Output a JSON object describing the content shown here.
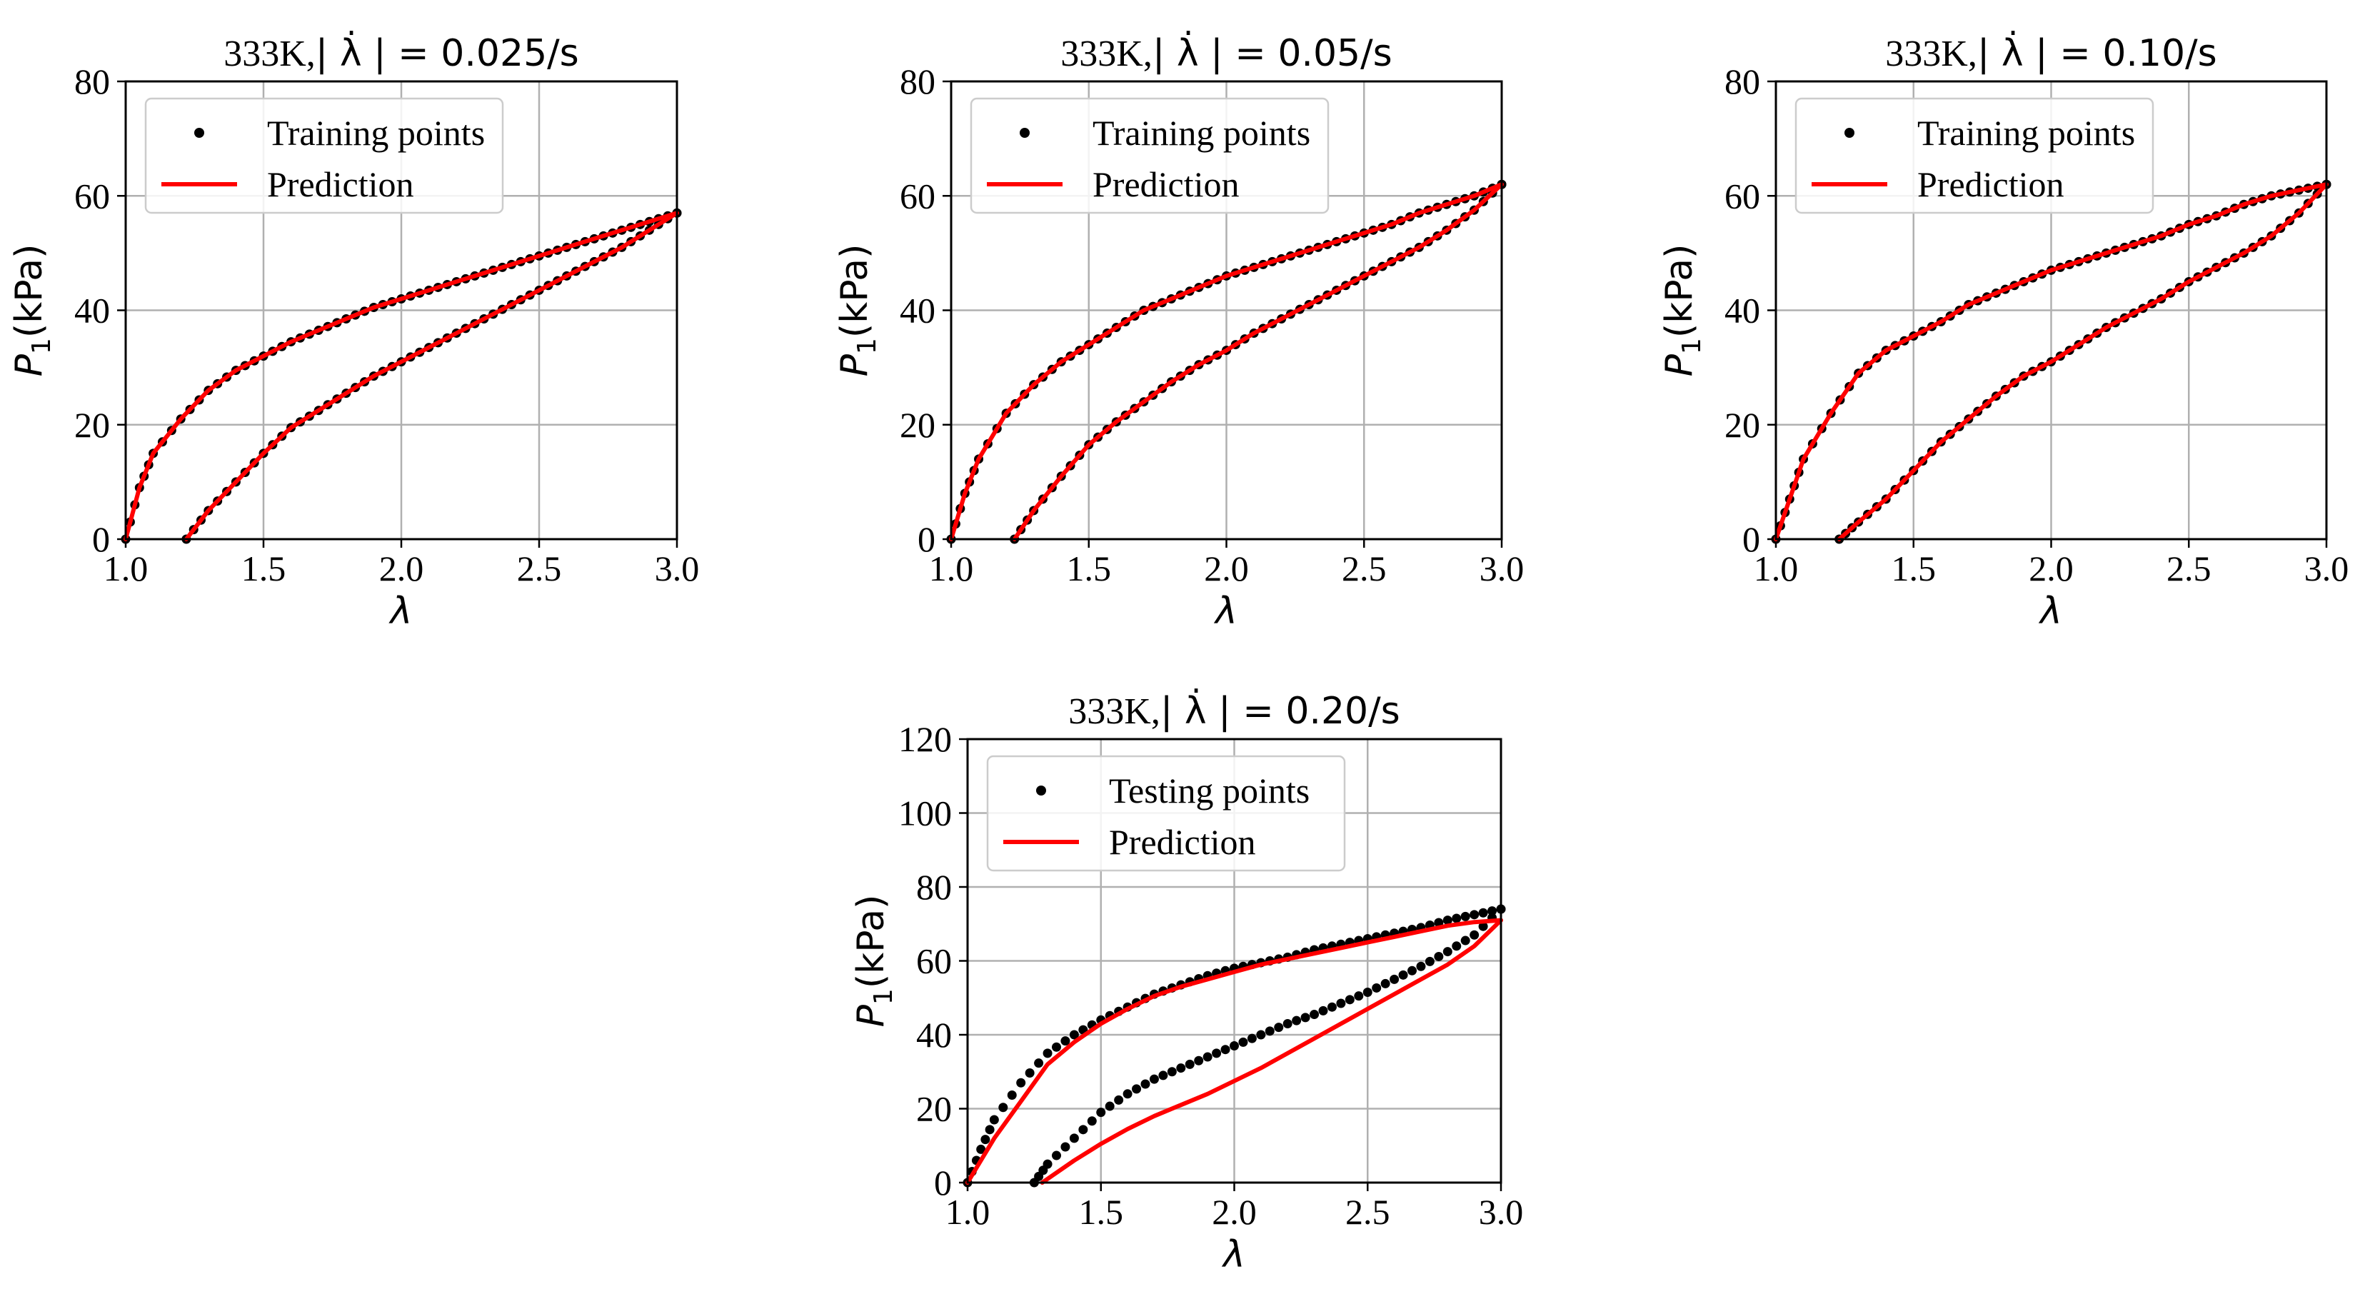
{
  "chart_data": [
    {
      "type": "scatter",
      "title_prefix": "333K,",
      "title_rate": "| λ̇ | = 0.025/s",
      "xlabel": "λ",
      "ylabel_base": "P",
      "ylabel_sub": "1",
      "ylabel_unit": "(kPa)",
      "xlim": [
        1.0,
        3.0
      ],
      "ylim": [
        0,
        80
      ],
      "xticks": [
        "1.0",
        "1.5",
        "2.0",
        "2.5",
        "3.0"
      ],
      "yticks": [
        "0",
        "20",
        "40",
        "60",
        "80"
      ],
      "grid": true,
      "legend_position": "top-left",
      "points_label": "Training points",
      "prediction_label": "Prediction",
      "loading": [
        [
          1.0,
          0
        ],
        [
          1.05,
          9
        ],
        [
          1.1,
          15
        ],
        [
          1.2,
          21
        ],
        [
          1.3,
          26
        ],
        [
          1.4,
          29.5
        ],
        [
          1.5,
          32
        ],
        [
          1.6,
          34.5
        ],
        [
          1.7,
          36.5
        ],
        [
          1.8,
          38.5
        ],
        [
          1.9,
          40.5
        ],
        [
          2.0,
          42
        ],
        [
          2.1,
          43.5
        ],
        [
          2.2,
          45
        ],
        [
          2.3,
          46.5
        ],
        [
          2.4,
          48
        ],
        [
          2.5,
          49.5
        ],
        [
          2.6,
          51
        ],
        [
          2.7,
          52.5
        ],
        [
          2.8,
          54
        ],
        [
          2.9,
          55.5
        ],
        [
          3.0,
          57
        ]
      ],
      "unloading": [
        [
          3.0,
          57
        ],
        [
          2.9,
          54
        ],
        [
          2.8,
          51
        ],
        [
          2.7,
          48.5
        ],
        [
          2.6,
          46
        ],
        [
          2.5,
          43.5
        ],
        [
          2.4,
          41
        ],
        [
          2.3,
          38.5
        ],
        [
          2.2,
          36
        ],
        [
          2.1,
          33.5
        ],
        [
          2.0,
          31
        ],
        [
          1.9,
          28.5
        ],
        [
          1.8,
          25.5
        ],
        [
          1.7,
          22.5
        ],
        [
          1.6,
          19.5
        ],
        [
          1.5,
          15
        ],
        [
          1.4,
          10
        ],
        [
          1.3,
          5
        ],
        [
          1.22,
          0
        ]
      ]
    },
    {
      "type": "scatter",
      "title_prefix": "333K,",
      "title_rate": "| λ̇ | = 0.05/s",
      "xlabel": "λ",
      "ylabel_base": "P",
      "ylabel_sub": "1",
      "ylabel_unit": "(kPa)",
      "xlim": [
        1.0,
        3.0
      ],
      "ylim": [
        0,
        80
      ],
      "xticks": [
        "1.0",
        "1.5",
        "2.0",
        "2.5",
        "3.0"
      ],
      "yticks": [
        "0",
        "20",
        "40",
        "60",
        "80"
      ],
      "grid": true,
      "legend_position": "top-left",
      "points_label": "Training points",
      "prediction_label": "Prediction",
      "loading": [
        [
          1.0,
          0
        ],
        [
          1.05,
          8
        ],
        [
          1.1,
          14
        ],
        [
          1.2,
          22
        ],
        [
          1.3,
          27
        ],
        [
          1.4,
          31
        ],
        [
          1.5,
          34
        ],
        [
          1.6,
          37
        ],
        [
          1.7,
          40
        ],
        [
          1.8,
          42
        ],
        [
          1.9,
          44
        ],
        [
          2.0,
          46
        ],
        [
          2.1,
          47.5
        ],
        [
          2.2,
          49
        ],
        [
          2.3,
          50.5
        ],
        [
          2.4,
          52
        ],
        [
          2.5,
          53.5
        ],
        [
          2.6,
          55
        ],
        [
          2.7,
          57
        ],
        [
          2.8,
          58.5
        ],
        [
          2.9,
          60
        ],
        [
          3.0,
          62
        ]
      ],
      "unloading": [
        [
          3.0,
          62
        ],
        [
          2.9,
          57.5
        ],
        [
          2.8,
          54
        ],
        [
          2.7,
          51
        ],
        [
          2.6,
          48.5
        ],
        [
          2.5,
          46
        ],
        [
          2.4,
          43.5
        ],
        [
          2.3,
          41
        ],
        [
          2.2,
          38.5
        ],
        [
          2.1,
          36
        ],
        [
          2.0,
          33
        ],
        [
          1.9,
          30.5
        ],
        [
          1.8,
          27.5
        ],
        [
          1.7,
          24
        ],
        [
          1.6,
          20.5
        ],
        [
          1.5,
          16.5
        ],
        [
          1.4,
          11
        ],
        [
          1.3,
          5
        ],
        [
          1.23,
          0
        ]
      ]
    },
    {
      "type": "scatter",
      "title_prefix": "333K,",
      "title_rate": "| λ̇ | = 0.10/s",
      "xlabel": "λ",
      "ylabel_base": "P",
      "ylabel_sub": "1",
      "ylabel_unit": "(kPa)",
      "xlim": [
        1.0,
        3.0
      ],
      "ylim": [
        0,
        80
      ],
      "xticks": [
        "1.0",
        "1.5",
        "2.0",
        "2.5",
        "3.0"
      ],
      "yticks": [
        "0",
        "20",
        "40",
        "60",
        "80"
      ],
      "grid": true,
      "legend_position": "top-left",
      "points_label": "Training points",
      "prediction_label": "Prediction",
      "loading": [
        [
          1.0,
          0
        ],
        [
          1.05,
          7
        ],
        [
          1.1,
          14
        ],
        [
          1.2,
          22
        ],
        [
          1.3,
          29
        ],
        [
          1.4,
          33
        ],
        [
          1.5,
          35.5
        ],
        [
          1.6,
          38
        ],
        [
          1.7,
          41
        ],
        [
          1.8,
          43
        ],
        [
          1.9,
          45
        ],
        [
          2.0,
          47
        ],
        [
          2.1,
          48.5
        ],
        [
          2.2,
          50
        ],
        [
          2.3,
          51.5
        ],
        [
          2.4,
          53
        ],
        [
          2.5,
          55
        ],
        [
          2.6,
          56.5
        ],
        [
          2.7,
          58.5
        ],
        [
          2.8,
          60
        ],
        [
          2.9,
          61
        ],
        [
          3.0,
          62
        ]
      ],
      "unloading": [
        [
          3.0,
          62
        ],
        [
          2.9,
          57
        ],
        [
          2.8,
          53
        ],
        [
          2.7,
          50
        ],
        [
          2.6,
          47.5
        ],
        [
          2.5,
          45
        ],
        [
          2.4,
          42
        ],
        [
          2.3,
          39.5
        ],
        [
          2.2,
          37
        ],
        [
          2.1,
          34
        ],
        [
          2.0,
          31
        ],
        [
          1.9,
          28.5
        ],
        [
          1.8,
          25
        ],
        [
          1.7,
          21
        ],
        [
          1.6,
          17
        ],
        [
          1.5,
          12
        ],
        [
          1.4,
          7
        ],
        [
          1.3,
          3
        ],
        [
          1.23,
          0
        ]
      ]
    },
    {
      "type": "scatter",
      "title_prefix": "333K,",
      "title_rate": "| λ̇ | = 0.20/s",
      "xlabel": "λ",
      "ylabel_base": "P",
      "ylabel_sub": "1",
      "ylabel_unit": "(kPa)",
      "xlim": [
        1.0,
        3.0
      ],
      "ylim": [
        0,
        120
      ],
      "xticks": [
        "1.0",
        "1.5",
        "2.0",
        "2.5",
        "3.0"
      ],
      "yticks": [
        "0",
        "20",
        "40",
        "60",
        "80",
        "100",
        "120"
      ],
      "grid": true,
      "legend_position": "top-left",
      "points_label": "Testing points",
      "prediction_label": "Prediction",
      "testing_loading": [
        [
          1.0,
          0
        ],
        [
          1.05,
          9
        ],
        [
          1.1,
          17
        ],
        [
          1.2,
          27
        ],
        [
          1.3,
          35
        ],
        [
          1.4,
          40
        ],
        [
          1.5,
          44
        ],
        [
          1.6,
          47.5
        ],
        [
          1.7,
          51
        ],
        [
          1.8,
          53.5
        ],
        [
          1.9,
          56
        ],
        [
          2.0,
          58
        ],
        [
          2.1,
          59.5
        ],
        [
          2.2,
          61
        ],
        [
          2.3,
          63
        ],
        [
          2.4,
          64.5
        ],
        [
          2.5,
          66
        ],
        [
          2.6,
          67.5
        ],
        [
          2.7,
          69
        ],
        [
          2.8,
          71
        ],
        [
          2.9,
          72.5
        ],
        [
          3.0,
          74
        ]
      ],
      "testing_unloading": [
        [
          3.0,
          74
        ],
        [
          2.9,
          67
        ],
        [
          2.8,
          62.5
        ],
        [
          2.7,
          58.5
        ],
        [
          2.6,
          55
        ],
        [
          2.5,
          51.5
        ],
        [
          2.4,
          48.5
        ],
        [
          2.3,
          45.5
        ],
        [
          2.2,
          43
        ],
        [
          2.1,
          40
        ],
        [
          2.0,
          37
        ],
        [
          1.9,
          34
        ],
        [
          1.8,
          31
        ],
        [
          1.7,
          28
        ],
        [
          1.6,
          24
        ],
        [
          1.5,
          19
        ],
        [
          1.4,
          12
        ],
        [
          1.3,
          5
        ],
        [
          1.25,
          0
        ]
      ],
      "pred_loading": [
        [
          1.0,
          0
        ],
        [
          1.05,
          6
        ],
        [
          1.1,
          12
        ],
        [
          1.2,
          22
        ],
        [
          1.3,
          32
        ],
        [
          1.4,
          38
        ],
        [
          1.5,
          43
        ],
        [
          1.6,
          47
        ],
        [
          1.7,
          50.5
        ],
        [
          1.8,
          53
        ],
        [
          1.9,
          55
        ],
        [
          2.0,
          57
        ],
        [
          2.1,
          59
        ],
        [
          2.2,
          60.5
        ],
        [
          2.3,
          62
        ],
        [
          2.4,
          63.5
        ],
        [
          2.5,
          65
        ],
        [
          2.6,
          66.5
        ],
        [
          2.7,
          68
        ],
        [
          2.8,
          69.5
        ],
        [
          2.9,
          70.5
        ],
        [
          3.0,
          71
        ]
      ],
      "pred_unloading": [
        [
          3.0,
          71
        ],
        [
          2.9,
          64
        ],
        [
          2.8,
          59
        ],
        [
          2.7,
          55
        ],
        [
          2.6,
          51
        ],
        [
          2.5,
          47
        ],
        [
          2.4,
          43
        ],
        [
          2.3,
          39
        ],
        [
          2.2,
          35
        ],
        [
          2.1,
          31
        ],
        [
          2.0,
          27.5
        ],
        [
          1.9,
          24
        ],
        [
          1.8,
          21
        ],
        [
          1.7,
          18
        ],
        [
          1.6,
          14.5
        ],
        [
          1.5,
          10.5
        ],
        [
          1.4,
          6
        ],
        [
          1.3,
          1
        ],
        [
          1.28,
          0
        ]
      ]
    }
  ],
  "colors": {
    "points": "#000000",
    "prediction": "#ff0000",
    "grid": "#b0b0b0",
    "legend_border": "#cccccc"
  }
}
